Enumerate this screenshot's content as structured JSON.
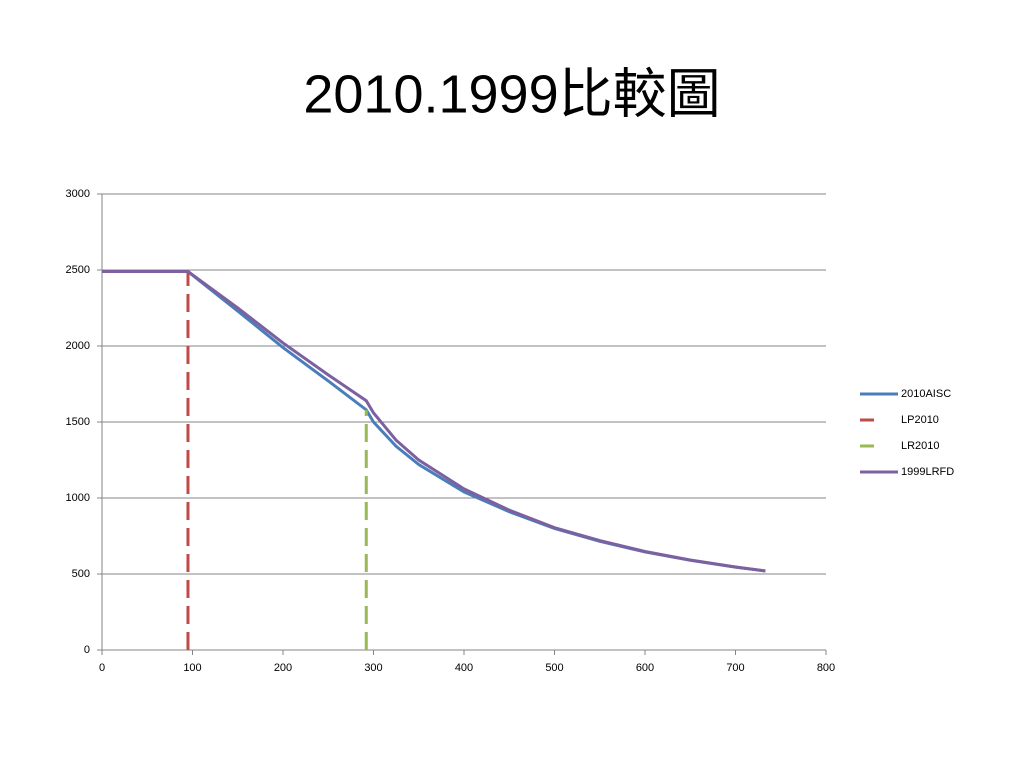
{
  "chart_data": {
    "type": "line",
    "title": "2010.1999比較圖",
    "xlim": [
      0,
      800
    ],
    "xticks": [
      0,
      100,
      200,
      300,
      400,
      500,
      600,
      700,
      800
    ],
    "ylim": [
      0,
      3000
    ],
    "yticks": [
      0,
      500,
      1000,
      1500,
      2000,
      2500,
      3000
    ],
    "grid": true,
    "legend": "right",
    "series": [
      {
        "name": "2010AISC",
        "color": "#4a7ebb",
        "dashed": false,
        "x": [
          0,
          95,
          150,
          200,
          250,
          292,
          300,
          325,
          350,
          400,
          450,
          500,
          550,
          600,
          650,
          700,
          733
        ],
        "values": [
          2490,
          2490,
          2230,
          1990,
          1770,
          1580,
          1500,
          1340,
          1220,
          1040,
          910,
          800,
          715,
          645,
          590,
          545,
          520
        ]
      },
      {
        "name": "LP2010",
        "color": "#be4b48",
        "dashed": true,
        "x": [
          95,
          95
        ],
        "values": [
          0,
          2490
        ]
      },
      {
        "name": "LR2010",
        "color": "#98b954",
        "dashed": true,
        "x": [
          292,
          292
        ],
        "values": [
          0,
          1580
        ]
      },
      {
        "name": "1999LRFD",
        "color": "#7d60a0",
        "dashed": false,
        "x": [
          0,
          95,
          150,
          200,
          250,
          292,
          300,
          325,
          350,
          400,
          450,
          500,
          550,
          600,
          650,
          700,
          733
        ],
        "values": [
          2490,
          2490,
          2250,
          2020,
          1810,
          1640,
          1560,
          1380,
          1250,
          1060,
          920,
          805,
          720,
          648,
          592,
          546,
          520
        ]
      }
    ]
  }
}
